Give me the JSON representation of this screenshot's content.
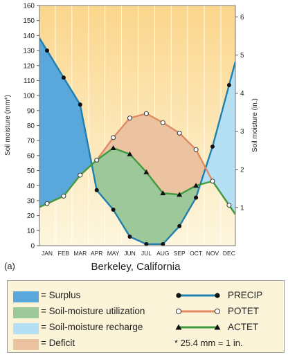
{
  "chart_data": {
    "type": "line",
    "title": "Berkeley, California",
    "panel_label": "(a)",
    "ylabel": "Soil moisture (mm*)",
    "y2label": "Soil moisture (in.)",
    "ylim": [
      0,
      160
    ],
    "yticks": [
      0,
      10,
      20,
      30,
      40,
      50,
      60,
      70,
      80,
      90,
      100,
      110,
      120,
      130,
      140,
      150,
      160
    ],
    "y2ticks": [
      "1",
      "2",
      "3",
      "4",
      "5",
      "6"
    ],
    "y2tick_mm": [
      25.4,
      50.8,
      76.2,
      101.6,
      127,
      152.4
    ],
    "categories": [
      "JAN",
      "FEB",
      "MAR",
      "APR",
      "MAY",
      "JUN",
      "JUL",
      "AUG",
      "SEP",
      "OCT",
      "NOV",
      "DEC"
    ],
    "series": [
      {
        "name": "PRECIP",
        "color": "#1f7fb0",
        "marker": "filled-circle",
        "values": [
          130,
          112,
          94,
          37,
          24,
          6,
          1,
          1,
          13,
          32,
          66,
          107
        ]
      },
      {
        "name": "POTET",
        "color": "#e08a62",
        "marker": "open-circle",
        "values": [
          28,
          33,
          47,
          57,
          72,
          85,
          88,
          82,
          75,
          64,
          43,
          27
        ]
      },
      {
        "name": "ACTET",
        "color": "#3f9b3f",
        "marker": "triangle",
        "values": [
          28,
          33,
          47,
          57,
          65,
          61,
          49,
          35,
          34,
          40,
          43,
          27
        ]
      }
    ],
    "legend": {
      "areas": [
        {
          "label": "= Surplus",
          "color": "#5aa7dc"
        },
        {
          "label": "= Soil-moisture utilization",
          "color": "#9cc89a"
        },
        {
          "label": "= Soil-moisture recharge",
          "color": "#b5dff3"
        },
        {
          "label": "= Deficit",
          "color": "#ecc3a0"
        }
      ],
      "lines": [
        "PRECIP",
        "POTET",
        "ACTET"
      ],
      "note": "* 25.4 mm = 1 in."
    }
  }
}
